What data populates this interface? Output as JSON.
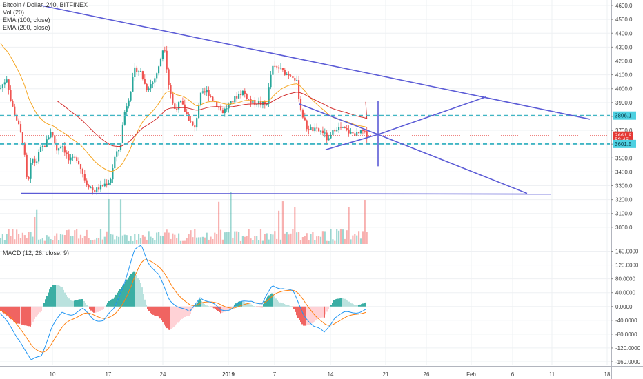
{
  "legend_main": {
    "symbol": "Bitcoin / Dollar, 240, BITFINEX",
    "vol": "Vol (20)",
    "ema100": "EMA (100, close)",
    "ema200": "EMA (200, close)"
  },
  "legend_macd": {
    "label": "MACD (12, 26, close, 9)"
  },
  "colors": {
    "up": "#26a69a",
    "down": "#ef5350",
    "ema100": "#d32f2f",
    "ema200": "#f5a623",
    "trend": "#5b5bd6",
    "level": "#41b6c4",
    "macd": "#2196f3",
    "signal": "#ff7f0e",
    "current": "#e53935"
  },
  "chart_data": [
    {
      "type": "candlestick",
      "title": "Bitcoin / Dollar, 240, BITFINEX",
      "y_ticks": [
        "4600.0",
        "4500.0",
        "4400.0",
        "4300.0",
        "4200.0",
        "4100.0",
        "4000.0",
        "3900.0",
        "3800.0",
        "3700.0",
        "3600.0",
        "3500.0",
        "3400.0",
        "3300.0",
        "3200.0",
        "3100.0",
        "3000.0"
      ],
      "ylim": [
        2880,
        4620
      ],
      "x_ticks": [
        "10",
        "17",
        "24",
        "2019",
        "7",
        "14",
        "21",
        "26",
        "Feb",
        "6",
        "11",
        "18"
      ],
      "price_tags": [
        {
          "label": "3806.1",
          "value": 3806.1,
          "kind": "level"
        },
        {
          "label": "3661.8",
          "value": 3661.8,
          "kind": "current"
        },
        {
          "label": "52:45",
          "value": 3632,
          "kind": "timer"
        },
        {
          "label": "3601.5",
          "value": 3601.5,
          "kind": "level"
        }
      ],
      "horizontal_levels": [
        3806.1,
        3601.5
      ],
      "support_line": 3245,
      "series": [
        {
          "name": "EMA (100, close)"
        },
        {
          "name": "EMA (200, close)"
        },
        {
          "name": "Vol (20)"
        }
      ]
    },
    {
      "type": "line",
      "title": "MACD (12, 26, close, 9)",
      "y_ticks": [
        "160.0000",
        "120.0000",
        "80.0000",
        "40.0000",
        "0.0000",
        "-40.0000",
        "-80.0000",
        "-120.0000",
        "-160.0000"
      ],
      "ylim": [
        -170,
        175
      ]
    }
  ]
}
